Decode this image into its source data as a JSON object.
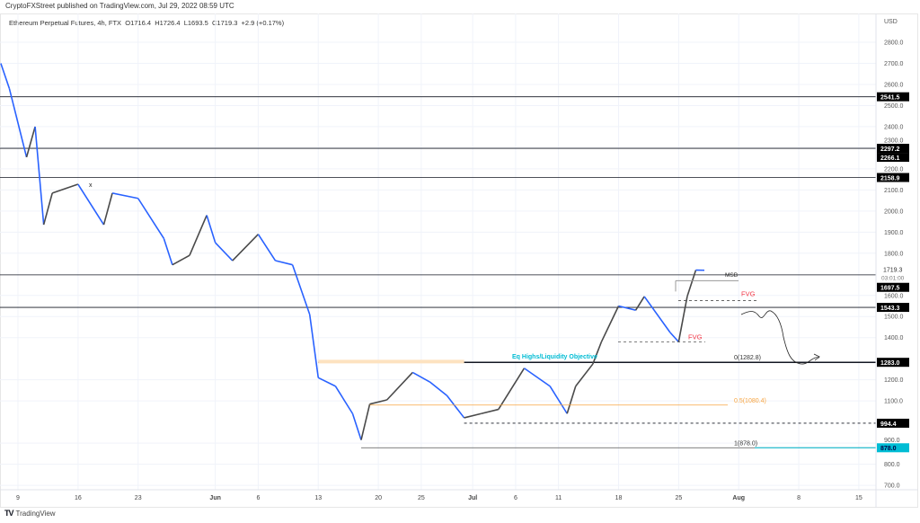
{
  "header": {
    "published": "CryptoFXStreet published on TradingView.com, Jul 29, 2022 08:59 UTC"
  },
  "legend": {
    "symbol": "Ethereum Perpetual Futures, 4h, FTX",
    "open": "O1716.4",
    "high": "H1726.4",
    "low": "L1693.5",
    "close": "C1719.3",
    "change": "+2.9 (+0.17%)"
  },
  "footer": {
    "brand": "TradingView",
    "logo_icon": "tradingview-logo-icon"
  },
  "colors": {
    "up_candle": "#4a4a4a",
    "down_candle": "#2962ff",
    "level_line": "#131722",
    "fib_orange": "#f7a440",
    "fvg_red": "#f23645",
    "eq_highs_cyan": "#00bcd4",
    "label_bg": "#000000",
    "label_878_bg": "#00bcd4"
  },
  "chart_data": {
    "type": "candlestick",
    "symbol": "Ethereum Perpetual Futures, 4h, FTX",
    "currency": "USD",
    "ylim": [
      660,
      2900
    ],
    "y_ticks": [
      "2800.0",
      "2700.0",
      "2600.0",
      "2500.0",
      "2400.0",
      "2300.0",
      "2200.0",
      "2100.0",
      "2000.0",
      "1900.0",
      "1800.0",
      "1600.0",
      "1500.0",
      "1400.0",
      "1200.0",
      "1100.0",
      "900.0",
      "800.0",
      "700.0"
    ],
    "y_tick_values": [
      2800,
      2700,
      2600,
      2500,
      2400,
      2300,
      2200,
      2100,
      2000,
      1900,
      1800,
      1600,
      1500,
      1400,
      1200,
      1100,
      900,
      800,
      700
    ],
    "x_ticks": [
      {
        "label": "9",
        "date": "2022-05-09"
      },
      {
        "label": "16",
        "date": "2022-05-16"
      },
      {
        "label": "23",
        "date": "2022-05-23"
      },
      {
        "label": "Jun",
        "date": "2022-06-01"
      },
      {
        "label": "6",
        "date": "2022-06-06"
      },
      {
        "label": "13",
        "date": "2022-06-13"
      },
      {
        "label": "20",
        "date": "2022-06-20"
      },
      {
        "label": "25",
        "date": "2022-06-25"
      },
      {
        "label": "Jul",
        "date": "2022-07-01"
      },
      {
        "label": "6",
        "date": "2022-07-06"
      },
      {
        "label": "11",
        "date": "2022-07-11"
      },
      {
        "label": "18",
        "date": "2022-07-18"
      },
      {
        "label": "25",
        "date": "2022-07-25"
      },
      {
        "label": "Aug",
        "date": "2022-08-01"
      },
      {
        "label": "8",
        "date": "2022-08-08"
      },
      {
        "label": "15",
        "date": "2022-08-15"
      }
    ],
    "price_path": [
      [
        "2022-05-07",
        2700
      ],
      [
        "2022-05-08",
        2580
      ],
      [
        "2022-05-10",
        2255
      ],
      [
        "2022-05-11",
        2400
      ],
      [
        "2022-05-12",
        1935
      ],
      [
        "2022-05-13",
        2085
      ],
      [
        "2022-05-16",
        2127
      ],
      [
        "2022-05-19",
        1935
      ],
      [
        "2022-05-20",
        2085
      ],
      [
        "2022-05-23",
        2060
      ],
      [
        "2022-05-26",
        1870
      ],
      [
        "2022-05-27",
        1745
      ],
      [
        "2022-05-29",
        1790
      ],
      [
        "2022-05-31",
        1980
      ],
      [
        "2022-06-01",
        1850
      ],
      [
        "2022-06-03",
        1765
      ],
      [
        "2022-06-06",
        1890
      ],
      [
        "2022-06-08",
        1765
      ],
      [
        "2022-06-10",
        1745
      ],
      [
        "2022-06-12",
        1510
      ],
      [
        "2022-06-13",
        1210
      ],
      [
        "2022-06-15",
        1170
      ],
      [
        "2022-06-17",
        1040
      ],
      [
        "2022-06-18",
        915
      ],
      [
        "2022-06-19",
        1085
      ],
      [
        "2022-06-21",
        1105
      ],
      [
        "2022-06-24",
        1235
      ],
      [
        "2022-06-26",
        1190
      ],
      [
        "2022-06-28",
        1125
      ],
      [
        "2022-06-30",
        1020
      ],
      [
        "2022-07-02",
        1040
      ],
      [
        "2022-07-04",
        1060
      ],
      [
        "2022-07-07",
        1255
      ],
      [
        "2022-07-10",
        1170
      ],
      [
        "2022-07-12",
        1040
      ],
      [
        "2022-07-13",
        1170
      ],
      [
        "2022-07-15",
        1275
      ],
      [
        "2022-07-16",
        1380
      ],
      [
        "2022-07-18",
        1550
      ],
      [
        "2022-07-20",
        1530
      ],
      [
        "2022-07-21",
        1595
      ],
      [
        "2022-07-24",
        1425
      ],
      [
        "2022-07-25",
        1380
      ],
      [
        "2022-07-26",
        1595
      ],
      [
        "2022-07-27",
        1720
      ],
      [
        "2022-07-28",
        1719.3
      ]
    ],
    "current_price": {
      "label": "1719.3",
      "countdown": "03:01:00"
    },
    "levels": [
      {
        "price": 2541.5,
        "label": "2541.5",
        "start": "2022-05-06",
        "style": "solid"
      },
      {
        "price": 2297.2,
        "label": "2297.2",
        "start": "2022-05-06",
        "style": "solid"
      },
      {
        "price": 2266.1,
        "label": "2266.1",
        "start": null,
        "style": "none"
      },
      {
        "price": 2158.9,
        "label": "2158.9",
        "start": "2022-05-06",
        "style": "solid"
      },
      {
        "price": 1697.5,
        "label": "1697.5",
        "start": "2022-05-06",
        "style": "solid"
      },
      {
        "price": 1543.3,
        "label": "1543.3",
        "start": "2022-05-06",
        "style": "solid"
      },
      {
        "price": 1283.0,
        "label": "1283.0",
        "start": "2022-06-13",
        "style": "thick"
      },
      {
        "price": 994.4,
        "label": "994.4",
        "start": "2022-06-30",
        "style": "dashed"
      },
      {
        "price": 878.0,
        "label": "878.0",
        "start": "2022-06-18",
        "style": "cyan"
      }
    ],
    "annotations": {
      "msb": "MSB",
      "fvg_upper": "FVG",
      "fvg_lower": "FVG",
      "eq_highs": "Eq Highs/Liquidity Objective",
      "fib_0": "0(1282.8)",
      "fib_05": "0.5(1080.4)",
      "fib_1": "1(878.0)",
      "x_mark": "x"
    },
    "fib_05_price": 1080.4,
    "msb_price": 1670,
    "fvg_upper_price": 1575,
    "fvg_lower_price": 1380
  }
}
